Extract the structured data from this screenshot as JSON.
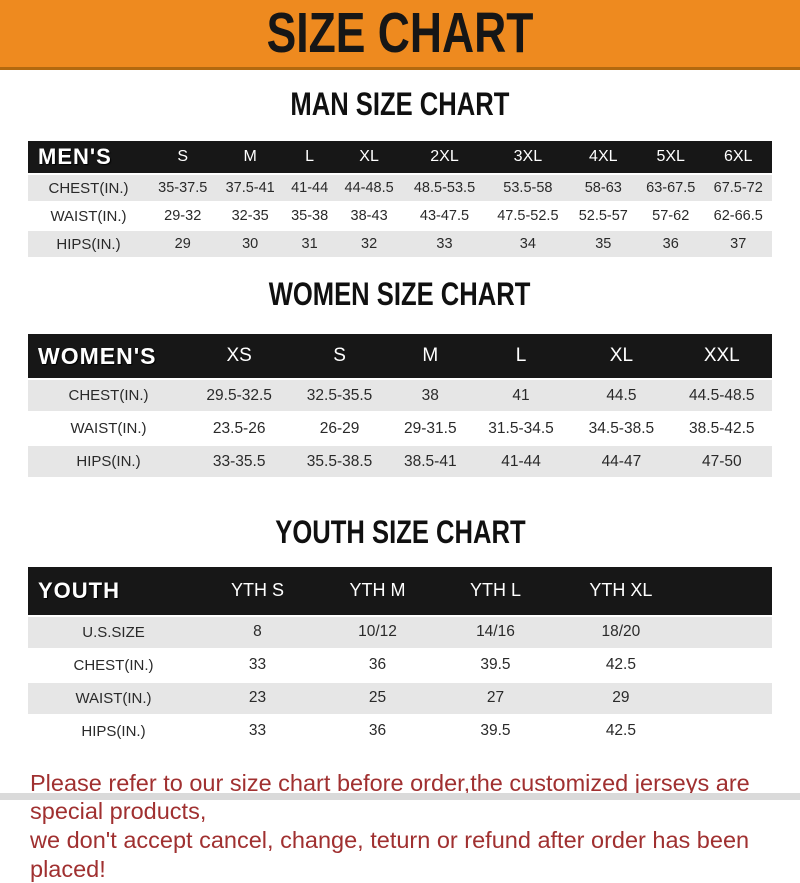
{
  "banner": {
    "title": "SIZE CHART"
  },
  "sections": [
    {
      "title": "MAN SIZE CHART",
      "header": {
        "label": "MEN'S",
        "sizes": [
          "S",
          "M",
          "L",
          "XL",
          "2XL",
          "3XL",
          "4XL",
          "5XL",
          "6XL"
        ]
      },
      "rows": [
        {
          "label": "CHEST(IN.)",
          "values": [
            "35-37.5",
            "37.5-41",
            "41-44",
            "44-48.5",
            "48.5-53.5",
            "53.5-58",
            "58-63",
            "63-67.5",
            "67.5-72"
          ]
        },
        {
          "label": "WAIST(IN.)",
          "values": [
            "29-32",
            "32-35",
            "35-38",
            "38-43",
            "43-47.5",
            "47.5-52.5",
            "52.5-57",
            "57-62",
            "62-66.5"
          ]
        },
        {
          "label": "HIPS(IN.)",
          "values": [
            "29",
            "30",
            "31",
            "32",
            "33",
            "34",
            "35",
            "36",
            "37"
          ]
        }
      ]
    },
    {
      "title": "WOMEN SIZE CHART",
      "header": {
        "label": "WOMEN'S",
        "sizes": [
          "XS",
          "S",
          "M",
          "L",
          "XL",
          "XXL"
        ]
      },
      "rows": [
        {
          "label": "CHEST(IN.)",
          "values": [
            "29.5-32.5",
            "32.5-35.5",
            "38",
            "41",
            "44.5",
            "44.5-48.5"
          ]
        },
        {
          "label": "WAIST(IN.)",
          "values": [
            "23.5-26",
            "26-29",
            "29-31.5",
            "31.5-34.5",
            "34.5-38.5",
            "38.5-42.5"
          ]
        },
        {
          "label": "HIPS(IN.)",
          "values": [
            "33-35.5",
            "35.5-38.5",
            "38.5-41",
            "41-44",
            "44-47",
            "47-50"
          ]
        }
      ]
    },
    {
      "title": "YOUTH SIZE CHART",
      "header": {
        "label": "YOUTH",
        "sizes": [
          "YTH S",
          "YTH M",
          "YTH L",
          "YTH XL"
        ]
      },
      "rows": [
        {
          "label": "U.S.SIZE",
          "values": [
            "8",
            "10/12",
            "14/16",
            "18/20"
          ]
        },
        {
          "label": "CHEST(IN.)",
          "values": [
            "33",
            "36",
            "39.5",
            "42.5"
          ]
        },
        {
          "label": "WAIST(IN.)",
          "values": [
            "23",
            "25",
            "27",
            "29"
          ]
        },
        {
          "label": "HIPS(IN.)",
          "values": [
            "33",
            "36",
            "39.5",
            "42.5"
          ]
        }
      ]
    }
  ],
  "footer": {
    "line1": "Please refer to our size chart before order,the customized jerseys are special products,",
    "line2": "we don't accept cancel, change, teturn or refund after order has been placed!"
  },
  "colors": {
    "banner_orange": "#ee8a1f",
    "header_black": "#171717",
    "row_gray": "#e6e6e6",
    "note_red": "#a03030"
  }
}
